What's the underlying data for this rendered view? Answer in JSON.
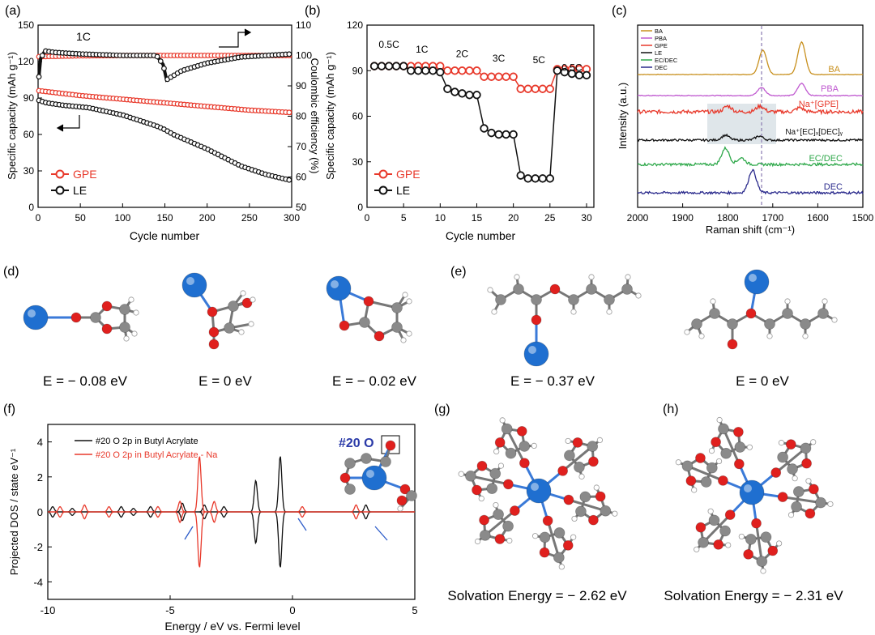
{
  "panels": {
    "a": {
      "label": "(a)"
    },
    "b": {
      "label": "(b)"
    },
    "c": {
      "label": "(c)"
    },
    "d": {
      "label": "(d)"
    },
    "e": {
      "label": "(e)"
    },
    "f": {
      "label": "(f)"
    },
    "g": {
      "label": "(g)"
    },
    "h": {
      "label": "(h)"
    }
  },
  "colors": {
    "gpe": "#e8392b",
    "le": "#111111",
    "ba": "#c8901e",
    "pba": "#c05ad0",
    "gpe_raman": "#e8392b",
    "le_raman": "#111111",
    "ecdec": "#2ea84a",
    "dec": "#2a2a8c",
    "atom_na": "#1f6fd0",
    "atom_o": "#e0201e",
    "atom_c": "#8a8a8a",
    "atom_h": "#ffffff"
  },
  "chart_data": [
    {
      "id": "a",
      "type": "line",
      "xlabel": "Cycle number",
      "ylabel": "Specific capacity (mAh g⁻¹)",
      "y2label": "Coulombic efficiency (%)",
      "xlim": [
        0,
        300
      ],
      "ylim": [
        0,
        150
      ],
      "y2lim": [
        50,
        110
      ],
      "xticks": [
        0,
        50,
        100,
        150,
        200,
        250,
        300
      ],
      "yticks": [
        0,
        30,
        60,
        90,
        120,
        150
      ],
      "y2ticks": [
        50,
        60,
        70,
        80,
        90,
        100,
        110
      ],
      "annotation": "1C",
      "legend": [
        "GPE",
        "LE"
      ],
      "legend_position": "bottom-left",
      "series": [
        {
          "name": "GPE",
          "axis": "left",
          "x": [
            1,
            50,
            100,
            150,
            200,
            250,
            300
          ],
          "values": [
            96,
            92,
            89,
            86,
            83,
            80,
            78
          ]
        },
        {
          "name": "GPE",
          "axis": "right",
          "x": [
            1,
            50,
            100,
            150,
            200,
            250,
            300
          ],
          "values": [
            99.6,
            99.9,
            100,
            100,
            100,
            100,
            100
          ]
        },
        {
          "name": "LE",
          "axis": "left",
          "x": [
            1,
            10,
            30,
            60,
            100,
            140,
            150,
            160,
            200,
            240,
            270,
            300
          ],
          "values": [
            88,
            86,
            84,
            82,
            76,
            67,
            64,
            60,
            48,
            34,
            27,
            22
          ]
        },
        {
          "name": "LE",
          "axis": "right",
          "x": [
            1,
            3,
            8,
            20,
            50,
            100,
            140,
            148,
            152,
            158,
            170,
            200,
            240,
            300
          ],
          "values": [
            93,
            99,
            101.5,
            101,
            100.5,
            100,
            100,
            97,
            92,
            93,
            95,
            97.5,
            99.5,
            100.5
          ]
        }
      ]
    },
    {
      "id": "b",
      "type": "scatter",
      "xlabel": "Cycle number",
      "ylabel": "Specific capacity (mAh g⁻¹)",
      "xlim": [
        0,
        31
      ],
      "ylim": [
        0,
        120
      ],
      "xticks": [
        0,
        5,
        10,
        15,
        20,
        25,
        30
      ],
      "yticks": [
        0,
        30,
        60,
        90,
        120
      ],
      "rate_labels": [
        "0.5C",
        "1C",
        "2C",
        "3C",
        "5C",
        "0.5C"
      ],
      "legend": [
        "GPE",
        "LE"
      ],
      "legend_position": "bottom-left",
      "series": [
        {
          "name": "GPE",
          "x": [
            1,
            2,
            3,
            4,
            5,
            6,
            7,
            8,
            9,
            10,
            11,
            12,
            13,
            14,
            15,
            16,
            17,
            18,
            19,
            20,
            21,
            22,
            23,
            24,
            25,
            26,
            27,
            28,
            29,
            30
          ],
          "values": [
            93,
            93,
            93,
            93,
            93,
            93,
            93,
            93,
            93,
            93,
            90,
            90,
            90,
            90,
            90,
            86,
            86,
            86,
            86,
            86,
            78,
            78,
            78,
            78,
            78,
            91,
            91,
            91,
            91,
            91
          ]
        },
        {
          "name": "LE",
          "x": [
            1,
            2,
            3,
            4,
            5,
            6,
            7,
            8,
            9,
            10,
            11,
            12,
            13,
            14,
            15,
            16,
            17,
            18,
            19,
            20,
            21,
            22,
            23,
            24,
            25,
            26,
            27,
            28,
            29,
            30
          ],
          "values": [
            93,
            93,
            93,
            93,
            93,
            90,
            90,
            90,
            90,
            89,
            78,
            76,
            75,
            74,
            74,
            52,
            49,
            48,
            48,
            48,
            21,
            19,
            19,
            19,
            19,
            90,
            89,
            88,
            87,
            87
          ]
        }
      ]
    },
    {
      "id": "c",
      "type": "line",
      "xlabel": "Raman shift (cm⁻¹)",
      "ylabel": "Intensity (a.u.)",
      "xlim": [
        2000,
        1500
      ],
      "xticks": [
        2000,
        1900,
        1800,
        1700,
        1600,
        1500
      ],
      "legend": [
        "BA",
        "PBA",
        "GPE",
        "LE",
        "EC/DEC",
        "DEC"
      ],
      "legend_position": "top-left",
      "curve_labels": [
        "BA",
        "PBA",
        "Na⁺[GPE]",
        "Na⁺[EC]ₓ[DEC]ᵧ",
        "EC/DEC",
        "DEC"
      ],
      "series": [
        {
          "name": "BA",
          "peaks": [
            1722,
            1636
          ]
        },
        {
          "name": "PBA",
          "peaks": [
            1725,
            1636
          ]
        },
        {
          "name": "GPE",
          "peaks": [
            1800,
            1728,
            1640
          ]
        },
        {
          "name": "LE",
          "peaks": [
            1805,
            1730
          ]
        },
        {
          "name": "EC/DEC",
          "peaks": [
            1805,
            1770
          ]
        },
        {
          "name": "DEC",
          "peaks": [
            1745
          ]
        }
      ]
    },
    {
      "id": "f",
      "type": "line",
      "xlabel": "Energy / eV vs. Fermi level",
      "ylabel": "Projected DOS / state eV⁻¹",
      "xlim": [
        -10,
        5
      ],
      "ylim": [
        -5,
        5
      ],
      "xticks": [
        -10,
        -5,
        0,
        5
      ],
      "yticks": [
        -4,
        -2,
        0,
        2,
        4
      ],
      "annotation": "#20 O",
      "legend": [
        "#20 O 2p  in Butyl Acrylate",
        "#20 O 2p  in Butyl Acrylate - Na"
      ],
      "legend_position": "top-left",
      "series": [
        {
          "name": "#20 O 2p  in Butyl Acrylate",
          "peaks": [
            [
              -9.8,
              0.3
            ],
            [
              -9.0,
              0.2
            ],
            [
              -7.0,
              0.3
            ],
            [
              -6.5,
              0.2
            ],
            [
              -5.8,
              0.3
            ],
            [
              -4.5,
              0.5
            ],
            [
              -3.6,
              0.4
            ],
            [
              -2.8,
              0.3
            ],
            [
              -1.5,
              1.8
            ],
            [
              -0.5,
              3.2
            ],
            [
              3.0,
              0.4
            ]
          ]
        },
        {
          "name": "#20 O 2p  in Butyl Acrylate - Na",
          "peaks": [
            [
              -9.5,
              0.3
            ],
            [
              -8.5,
              0.4
            ],
            [
              -7.5,
              0.3
            ],
            [
              -5.5,
              0.3
            ],
            [
              -4.6,
              0.6
            ],
            [
              -3.8,
              3.2
            ],
            [
              -3.2,
              0.6
            ],
            [
              0.4,
              0.3
            ],
            [
              2.6,
              0.4
            ]
          ]
        }
      ]
    }
  ],
  "energies": {
    "d1": "E = − 0.08 eV",
    "d2": "E = 0 eV",
    "d3": "E = − 0.02 eV",
    "e1": "E = − 0.37 eV",
    "e2": "E = 0 eV"
  },
  "solvation": {
    "g": "Solvation Energy = − 2.62 eV",
    "h": "Solvation Energy = − 2.31 eV"
  }
}
